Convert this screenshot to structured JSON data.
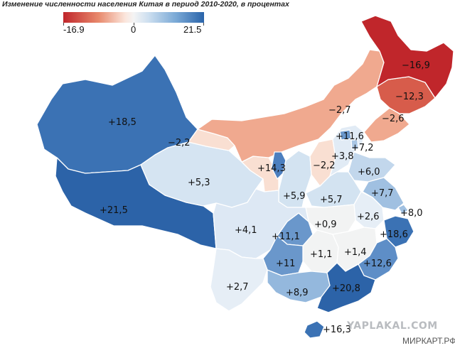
{
  "title": "Изменение численности населения Китая в период 2010-2020, в процентах",
  "legend": {
    "min_label": "-16.9",
    "mid_label": "0",
    "max_label": "21.5",
    "colors": [
      "#c0262b",
      "#e8896c",
      "#fbe6dc",
      "#f4f4f4",
      "#cfe0f0",
      "#7aa9d6",
      "#2a64aa"
    ]
  },
  "regions": [
    {
      "id": "xinjiang",
      "label": "+18,5",
      "value": 18.5,
      "color": "#3b72b4"
    },
    {
      "id": "tibet",
      "label": "+21,5",
      "value": 21.5,
      "color": "#2c63a8"
    },
    {
      "id": "qinghai",
      "label": "+5,3",
      "value": 5.3,
      "color": "#d5e4f2"
    },
    {
      "id": "gansu",
      "label": "−2,2",
      "value": -2.2,
      "color": "#f9dfd2"
    },
    {
      "id": "inner-mongolia",
      "label": "−2,7",
      "value": -2.7,
      "color": "#f0a98f"
    },
    {
      "id": "ningxia",
      "label": "+14,3",
      "value": 14.3,
      "color": "#4c7fbf"
    },
    {
      "id": "shaanxi",
      "label": "+5,9",
      "value": 5.9,
      "color": "#d3e3f1"
    },
    {
      "id": "shanxi",
      "label": "−2,2",
      "value": -2.2,
      "color": "#f9dfd2"
    },
    {
      "id": "beijing",
      "label": "+11,6",
      "value": 11.6,
      "color": "#6a97cb"
    },
    {
      "id": "tianjin",
      "label": "+7,2",
      "value": 7.2,
      "color": "#a9c6e4"
    },
    {
      "id": "hebei",
      "label": "+3,8",
      "value": 3.8,
      "color": "#e1ebf5"
    },
    {
      "id": "shandong",
      "label": "+6,0",
      "value": 6.0,
      "color": "#c2d7ec"
    },
    {
      "id": "heilongjiang",
      "label": "−16,9",
      "value": -16.9,
      "color": "#c0262b"
    },
    {
      "id": "jilin",
      "label": "−12,3",
      "value": -12.3,
      "color": "#d75c4b"
    },
    {
      "id": "liaoning",
      "label": "−2,6",
      "value": -2.6,
      "color": "#f0a98f"
    },
    {
      "id": "henan",
      "label": "+5,7",
      "value": 5.7,
      "color": "#d3e3f1"
    },
    {
      "id": "jiangsu",
      "label": "+7,7",
      "value": 7.7,
      "color": "#a0c0e1"
    },
    {
      "id": "anhui",
      "label": "+2,6",
      "value": 2.6,
      "color": "#e6eef6"
    },
    {
      "id": "shanghai",
      "label": "+8,0",
      "value": 8.0,
      "color": "#a0c0e1"
    },
    {
      "id": "hubei",
      "label": "+0,9",
      "value": 0.9,
      "color": "#f2f3f3"
    },
    {
      "id": "chongqing",
      "label": "+11,1",
      "value": 11.1,
      "color": "#6a97cb"
    },
    {
      "id": "sichuan",
      "label": "+4,1",
      "value": 4.1,
      "color": "#dde8f4"
    },
    {
      "id": "zhejiang",
      "label": "+18,6",
      "value": 18.6,
      "color": "#3b72b4"
    },
    {
      "id": "hunan",
      "label": "+1,1",
      "value": 1.1,
      "color": "#f2f3f3"
    },
    {
      "id": "jiangxi",
      "label": "+1,4",
      "value": 1.4,
      "color": "#f2f3f3"
    },
    {
      "id": "guizhou",
      "label": "+11",
      "value": 11.0,
      "color": "#6a97cb"
    },
    {
      "id": "fujian",
      "label": "+12,6",
      "value": 12.6,
      "color": "#5e8ec7"
    },
    {
      "id": "yunnan",
      "label": "+2,7",
      "value": 2.7,
      "color": "#e6eef6"
    },
    {
      "id": "guangxi",
      "label": "+8,9",
      "value": 8.9,
      "color": "#94b8dd"
    },
    {
      "id": "guangdong",
      "label": "+20,8",
      "value": 20.8,
      "color": "#2c63a8"
    },
    {
      "id": "hainan",
      "label": "+16,3",
      "value": 16.3,
      "color": "#3b72b4"
    }
  ],
  "watermarks": [
    "YAPLAKAL.COM",
    "МИРКАРТ.РФ"
  ]
}
